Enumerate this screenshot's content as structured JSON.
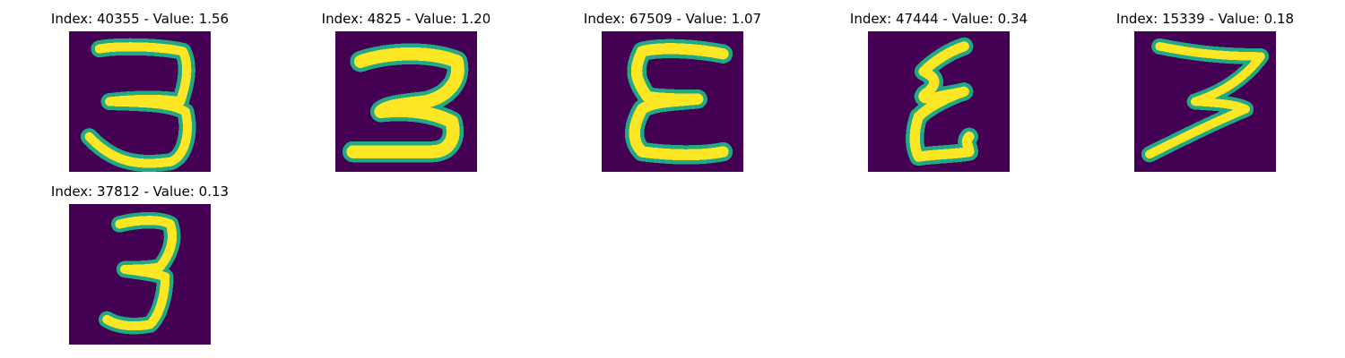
{
  "figure": {
    "panels": [
      {
        "index": "40355",
        "value": "1.56",
        "title": "Index: 40355 - Value: 1.56",
        "digit": "3"
      },
      {
        "index": "4825",
        "value": "1.20",
        "title": "Index: 4825 - Value: 1.20",
        "digit": "3"
      },
      {
        "index": "67509",
        "value": "1.07",
        "title": "Index: 67509 - Value: 1.07",
        "digit": "3"
      },
      {
        "index": "47444",
        "value": "0.34",
        "title": "Index: 47444 - Value: 0.34",
        "digit": "3"
      },
      {
        "index": "15339",
        "value": "0.18",
        "title": "Index: 15339 - Value: 0.18",
        "digit": "3"
      },
      {
        "index": "37812",
        "value": "0.13",
        "title": "Index: 37812 - Value: 0.13",
        "digit": "3"
      }
    ],
    "colors": {
      "background": "#440154",
      "stroke_outer": "#22a884",
      "stroke_inner": "#fde725"
    }
  }
}
